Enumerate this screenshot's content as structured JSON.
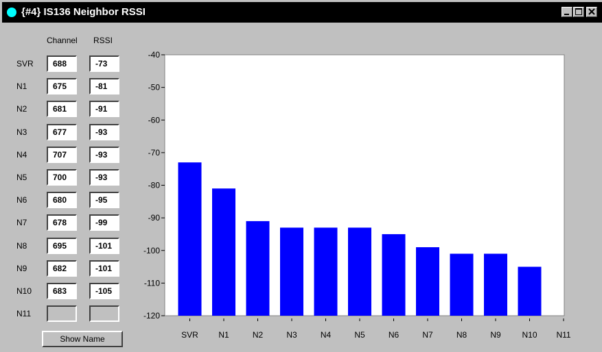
{
  "window": {
    "title": "{#4} IS136 Neighbor RSSI",
    "title_dot_color": "#00ffff",
    "controls": [
      "minimize-icon",
      "maximize-icon",
      "close-icon"
    ]
  },
  "table": {
    "channel_header": "Channel",
    "rssi_header": "RSSI",
    "rows": [
      {
        "label": "SVR",
        "channel": "688",
        "rssi": "-73"
      },
      {
        "label": "N1",
        "channel": "675",
        "rssi": "-81"
      },
      {
        "label": "N2",
        "channel": "681",
        "rssi": "-91"
      },
      {
        "label": "N3",
        "channel": "677",
        "rssi": "-93"
      },
      {
        "label": "N4",
        "channel": "707",
        "rssi": "-93"
      },
      {
        "label": "N5",
        "channel": "700",
        "rssi": "-93"
      },
      {
        "label": "N6",
        "channel": "680",
        "rssi": "-95"
      },
      {
        "label": "N7",
        "channel": "678",
        "rssi": "-99"
      },
      {
        "label": "N8",
        "channel": "695",
        "rssi": "-101"
      },
      {
        "label": "N9",
        "channel": "682",
        "rssi": "-101"
      },
      {
        "label": "N10",
        "channel": "683",
        "rssi": "-105"
      },
      {
        "label": "N11",
        "channel": "",
        "rssi": ""
      }
    ]
  },
  "show_name_button": "Show Name",
  "chart_data": {
    "type": "bar",
    "categories": [
      "SVR",
      "N1",
      "N2",
      "N3",
      "N4",
      "N5",
      "N6",
      "N7",
      "N8",
      "N9",
      "N10",
      "N11"
    ],
    "values": [
      -73,
      -81,
      -91,
      -93,
      -93,
      -93,
      -95,
      -99,
      -101,
      -101,
      -105,
      null
    ],
    "ylim": [
      -120,
      -40
    ],
    "yticks": [
      "-40",
      "-50",
      "-60",
      "-70",
      "-80",
      "-90",
      "-100",
      "-110",
      "-120"
    ],
    "bar_color": "#0000ff",
    "grid": false
  }
}
